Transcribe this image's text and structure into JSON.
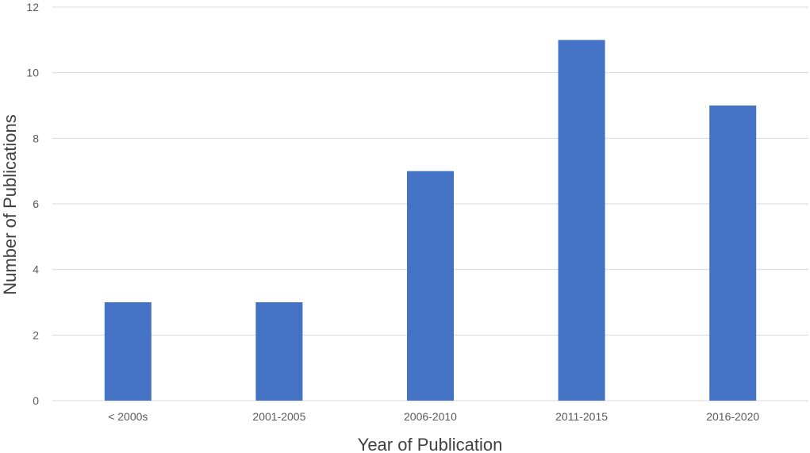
{
  "chart_data": {
    "type": "bar",
    "title": "",
    "xlabel": "Year of Publication",
    "ylabel": "Number of Publications",
    "categories": [
      "< 2000s",
      "2001-2005",
      "2006-2010",
      "2011-2015",
      "2016-2020"
    ],
    "series": [
      {
        "values": [
          3,
          3,
          7,
          11,
          9
        ]
      }
    ],
    "ylim": [
      0,
      12
    ],
    "yticks": [
      "0",
      "2",
      "4",
      "6",
      "8",
      "10",
      "12"
    ],
    "grid": true,
    "legend": "none",
    "colors": {
      "bar": "#4472C4"
    }
  }
}
